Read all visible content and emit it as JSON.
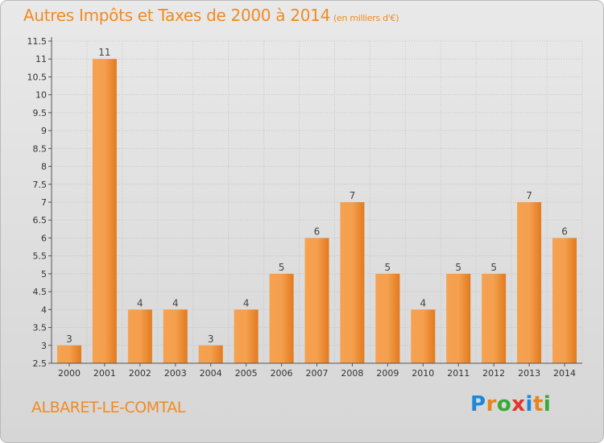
{
  "title": {
    "main": "Autres Impôts et Taxes de 2000 à 2014",
    "unit": "(en milliers d'€)"
  },
  "commune": "ALBARET-LE-COMTAL",
  "logo": {
    "letters": [
      "P",
      "r",
      "o",
      "x",
      "i",
      "t",
      "i"
    ],
    "colors": [
      "#1e88d8",
      "#e8841e",
      "#39a935",
      "#e5332a",
      "#1e88d8",
      "#e8841e",
      "#39a935"
    ]
  },
  "colors": {
    "accent": "#f08a22",
    "bar_light": "#f7a85a",
    "bar_dark": "#d96d12"
  },
  "chart_data": {
    "type": "bar",
    "categories": [
      "2000",
      "2001",
      "2002",
      "2003",
      "2004",
      "2005",
      "2006",
      "2007",
      "2008",
      "2009",
      "2010",
      "2011",
      "2012",
      "2013",
      "2014"
    ],
    "values": [
      3,
      11,
      4,
      4,
      3,
      4,
      5,
      6,
      7,
      5,
      4,
      5,
      5,
      7,
      6
    ],
    "ylim": [
      2.5,
      11.5
    ],
    "yticks": [
      "2.5",
      "3",
      "3.5",
      "4",
      "4.5",
      "5",
      "5.5",
      "6",
      "6.5",
      "7",
      "7.5",
      "8",
      "8.5",
      "9",
      "9.5",
      "10",
      "10.5",
      "11",
      "11.5"
    ],
    "grid": true
  }
}
